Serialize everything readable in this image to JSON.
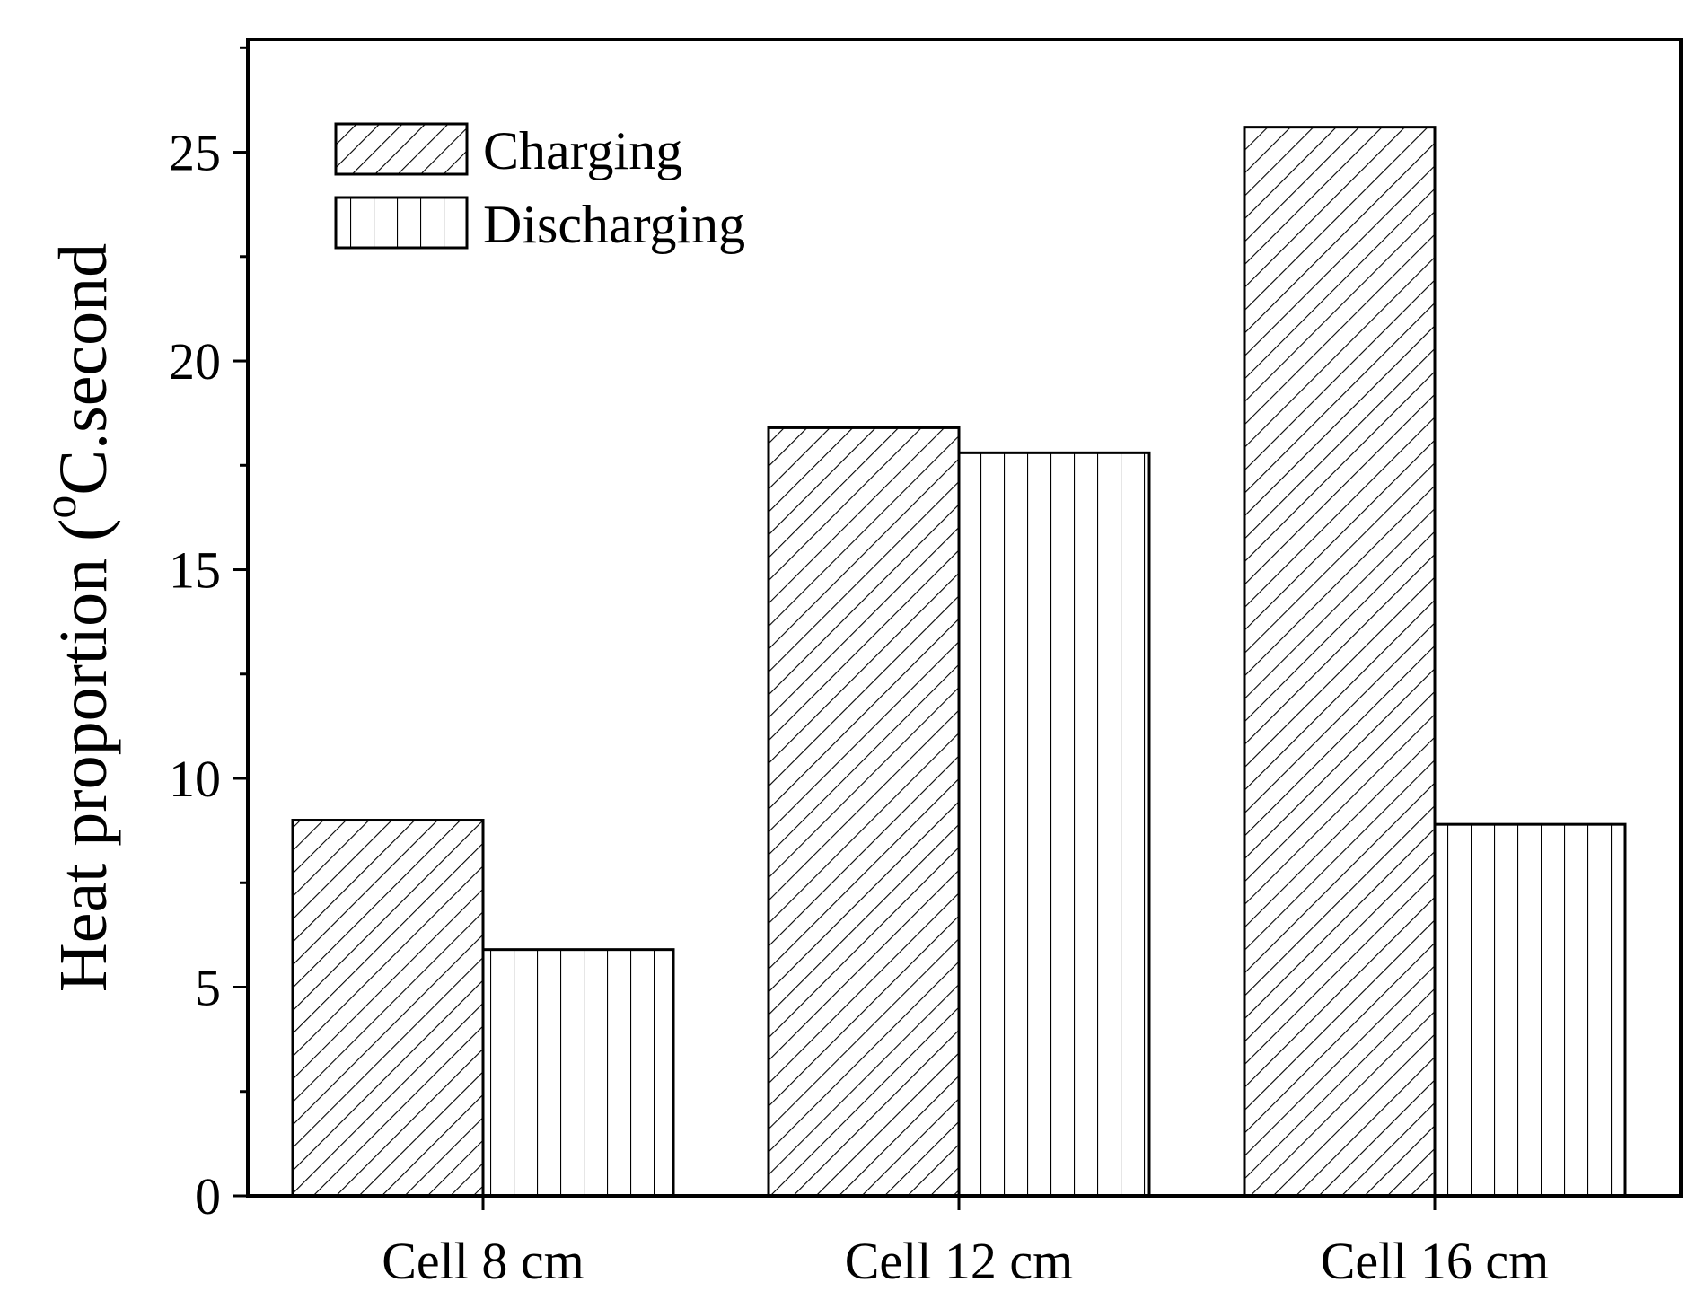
{
  "chart_data": {
    "type": "bar",
    "title": "",
    "xlabel": "",
    "ylabel": {
      "prefix": "Heat proportion (",
      "superscript": "o",
      "suffix": "C.second"
    },
    "categories": [
      "Cell 8 cm",
      "Cell 12 cm",
      "Cell 16 cm"
    ],
    "series": [
      {
        "name": "Charging",
        "pattern": "diagonal-hatch",
        "values": [
          9.0,
          18.4,
          25.6
        ]
      },
      {
        "name": "Discharging",
        "pattern": "vertical-hatch",
        "values": [
          5.9,
          17.8,
          8.9
        ]
      }
    ],
    "ylim": [
      0,
      27.7
    ],
    "yticks": [
      0,
      5,
      10,
      15,
      20,
      25
    ],
    "grid": false,
    "legend_position": "top-left",
    "colors": {
      "stroke": "#000000",
      "fill": "#ffffff"
    }
  }
}
